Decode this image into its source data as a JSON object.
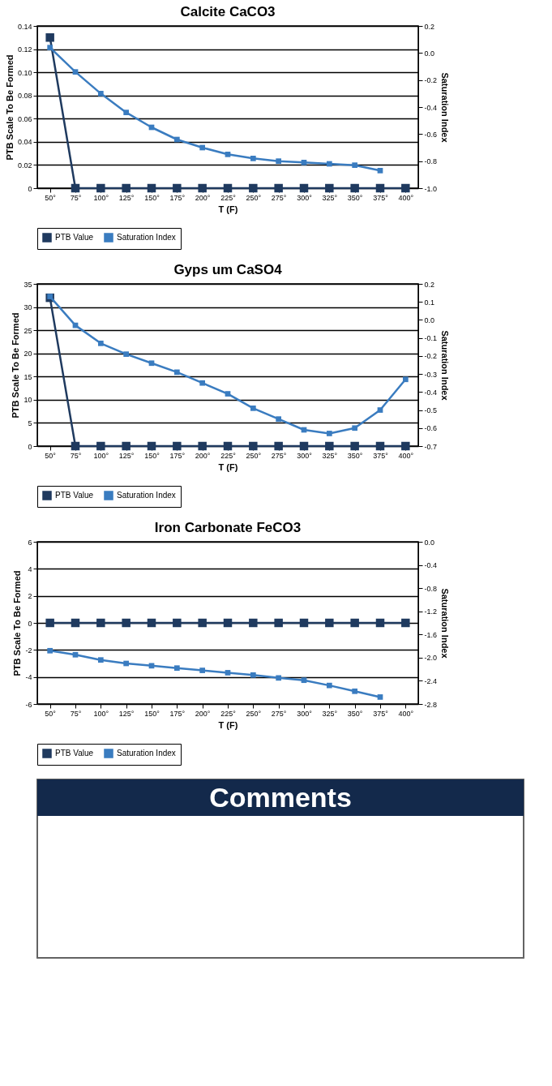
{
  "chart_data": [
    {
      "type": "line",
      "title": "Calcite CaCO3",
      "xlabel": "T (F)",
      "ylabel": "PTB Scale To Be Formed",
      "y2label": "Saturation Index",
      "categories": [
        "50°",
        "75°",
        "100°",
        "125°",
        "150°",
        "175°",
        "200°",
        "225°",
        "250°",
        "275°",
        "300°",
        "325°",
        "350°",
        "375°",
        "400°"
      ],
      "series": [
        {
          "name": "PTB Value",
          "color": "#1f3a5f",
          "values": [
            0.13,
            0,
            0,
            0,
            0,
            0,
            0,
            0,
            0,
            0,
            0,
            0,
            0,
            0,
            0
          ]
        },
        {
          "name": "Saturation Index",
          "color": "#3a7cc0",
          "axis": "y2",
          "values": [
            0.04,
            -0.14,
            -0.3,
            -0.44,
            -0.55,
            -0.64,
            -0.7,
            -0.75,
            -0.78,
            -0.8,
            -0.81,
            -0.82,
            -0.83,
            -0.87,
            null
          ]
        }
      ],
      "ylim": [
        0,
        0.14
      ],
      "yticks": [
        0,
        0.02,
        0.04,
        0.06,
        0.08,
        {
          "value": 0.1,
          "label": "0.10"
        },
        0.12,
        0.14
      ],
      "y2lim": [
        -1.0,
        0.2
      ],
      "y2ticks": [
        {
          "value": -1,
          "label": "-1.0"
        },
        -0.8,
        -0.6,
        -0.4,
        -0.2,
        {
          "value": 0,
          "label": "0.0"
        },
        0.2
      ],
      "grid": "y",
      "legend": "bottom",
      "marker": "square",
      "line_style": "solid"
    },
    {
      "type": "line",
      "title": "Gyps um CaSO4",
      "xlabel": "T (F)",
      "ylabel": "PTB Scale To Be Formed",
      "y2label": "Saturation Index",
      "categories": [
        "50°",
        "75°",
        "100°",
        "125°",
        "150°",
        "175°",
        "200°",
        "225°",
        "250°",
        "275°",
        "300°",
        "325°",
        "350°",
        "375°",
        "400°"
      ],
      "series": [
        {
          "name": "PTB Value",
          "color": "#1f3a5f",
          "values": [
            32,
            0,
            0,
            0,
            0,
            0,
            0,
            0,
            0,
            0,
            0,
            0,
            0,
            0,
            0
          ]
        },
        {
          "name": "Saturation Index",
          "color": "#3a7cc0",
          "axis": "y2",
          "values": [
            0.13,
            -0.03,
            -0.13,
            -0.19,
            -0.24,
            -0.29,
            -0.35,
            -0.41,
            -0.49,
            -0.55,
            -0.61,
            -0.63,
            -0.6,
            -0.5,
            -0.33
          ]
        }
      ],
      "ylim": [
        0,
        35
      ],
      "yticks": [
        0,
        5,
        10,
        15,
        20,
        25,
        30,
        35
      ],
      "y2lim": [
        -0.7,
        0.2
      ],
      "y2ticks": [
        -0.7,
        -0.6,
        -0.5,
        -0.4,
        -0.3,
        -0.2,
        -0.1,
        {
          "value": 0,
          "label": "0.0"
        },
        0.1,
        0.2
      ],
      "grid": "y",
      "legend": "bottom",
      "marker": "square",
      "line_style": "solid"
    },
    {
      "type": "line",
      "title": "Iron Carbonate FeCO3",
      "xlabel": "T (F)",
      "ylabel": "PTB Scale To Be Formed",
      "y2label": "Saturation Index",
      "categories": [
        "50°",
        "75°",
        "100°",
        "125°",
        "150°",
        "175°",
        "200°",
        "225°",
        "250°",
        "275°",
        "300°",
        "325°",
        "350°",
        "375°",
        "400°"
      ],
      "series": [
        {
          "name": "PTB Value",
          "color": "#1f3a5f",
          "values": [
            0,
            0,
            0,
            0,
            0,
            0,
            0,
            0,
            0,
            0,
            0,
            0,
            0,
            0,
            0
          ]
        },
        {
          "name": "Saturation Index",
          "color": "#3a7cc0",
          "axis": "y2",
          "values": [
            -1.88,
            -1.95,
            -2.04,
            -2.1,
            -2.14,
            -2.18,
            -2.22,
            -2.26,
            -2.3,
            -2.35,
            -2.39,
            -2.48,
            -2.58,
            -2.68,
            null
          ]
        }
      ],
      "ylim": [
        -6,
        6
      ],
      "yticks": [
        -6,
        -4,
        -2,
        0,
        2,
        4,
        6
      ],
      "y2lim": [
        -2.8,
        0.0
      ],
      "y2ticks": [
        -2.8,
        -2.4,
        {
          "value": -2,
          "label": "-2.0"
        },
        -1.6,
        -1.2,
        -0.8,
        -0.4,
        {
          "value": 0,
          "label": "0.0"
        }
      ],
      "grid": "y",
      "legend": "bottom",
      "marker": "square",
      "line_style": "solid"
    },
    {
      "type": "other",
      "title": "Comments"
    }
  ]
}
